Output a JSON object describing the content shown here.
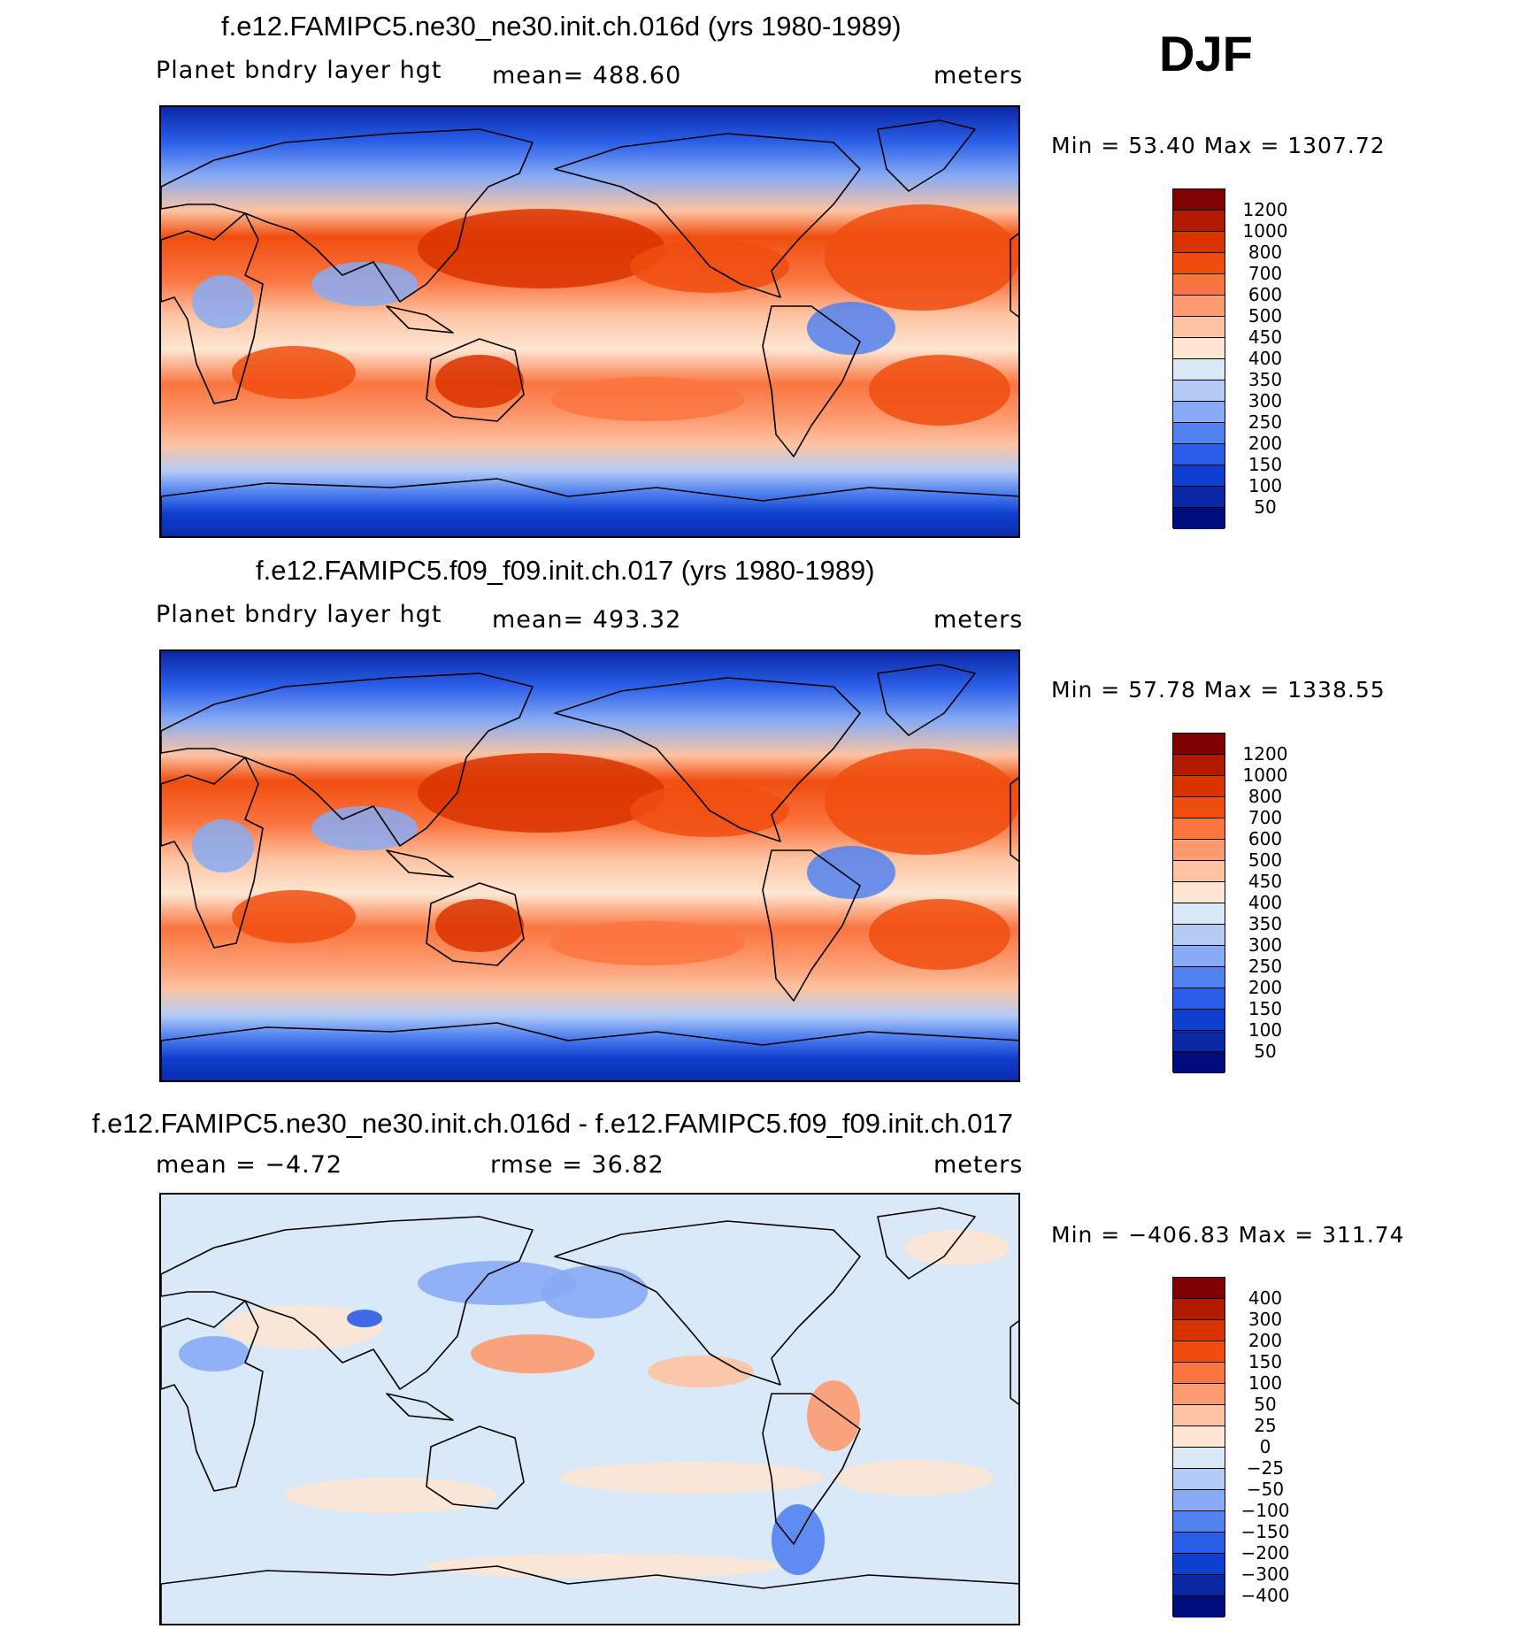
{
  "season": "DJF",
  "panels": [
    {
      "title": "f.e12.FAMIPC5.ne30_ne30.init.ch.016d (yrs 1980-1989)",
      "variable": "Planet bndry layer hgt",
      "stat": "mean=  488.60",
      "units": "meters",
      "minmax": "Min =   53.40 Max = 1307.72",
      "map_style": "field",
      "colorbar": {
        "labels": [
          "1200",
          "1000",
          "800",
          "700",
          "600",
          "500",
          "450",
          "400",
          "350",
          "300",
          "250",
          "200",
          "150",
          "100",
          "50"
        ],
        "colors": [
          "#7f0000",
          "#b21a00",
          "#d93300",
          "#f04e0f",
          "#fa7540",
          "#fc9a70",
          "#fdc3a2",
          "#fde6d2",
          "#d9e9f8",
          "#b4ccf5",
          "#87abf4",
          "#5282f0",
          "#2a5ee8",
          "#0f3fcf",
          "#0a27a6",
          "#000c7c"
        ]
      }
    },
    {
      "title": "f.e12.FAMIPC5.f09_f09.init.ch.017 (yrs 1980-1989)",
      "variable": "Planet bndry layer hgt",
      "stat": "mean=  493.32",
      "units": "meters",
      "minmax": "Min =   57.78 Max = 1338.55",
      "map_style": "field",
      "colorbar": {
        "labels": [
          "1200",
          "1000",
          "800",
          "700",
          "600",
          "500",
          "450",
          "400",
          "350",
          "300",
          "250",
          "200",
          "150",
          "100",
          "50"
        ],
        "colors": [
          "#7f0000",
          "#b21a00",
          "#d93300",
          "#f04e0f",
          "#fa7540",
          "#fc9a70",
          "#fdc3a2",
          "#fde6d2",
          "#d9e9f8",
          "#b4ccf5",
          "#87abf4",
          "#5282f0",
          "#2a5ee8",
          "#0f3fcf",
          "#0a27a6",
          "#000c7c"
        ]
      }
    },
    {
      "title": "f.e12.FAMIPC5.ne30_ne30.init.ch.016d - f.e12.FAMIPC5.f09_f09.init.ch.017",
      "stat_left": "mean =   −4.72",
      "stat_mid": "rmse =   36.82",
      "units": "meters",
      "minmax": "Min = −406.83 Max = 311.74",
      "map_style": "diff",
      "colorbar": {
        "labels": [
          "400",
          "300",
          "200",
          "150",
          "100",
          "50",
          "25",
          "0",
          "−25",
          "−50",
          "−100",
          "−150",
          "−200",
          "−300",
          "−400"
        ],
        "colors": [
          "#7f0000",
          "#b21a00",
          "#d93300",
          "#f04e0f",
          "#fa7540",
          "#fc9a70",
          "#fdc3a2",
          "#fde6d2",
          "#d9e9f8",
          "#b4ccf5",
          "#87abf4",
          "#5282f0",
          "#2a5ee8",
          "#0f3fcf",
          "#0a27a6",
          "#000c7c"
        ]
      }
    }
  ]
}
